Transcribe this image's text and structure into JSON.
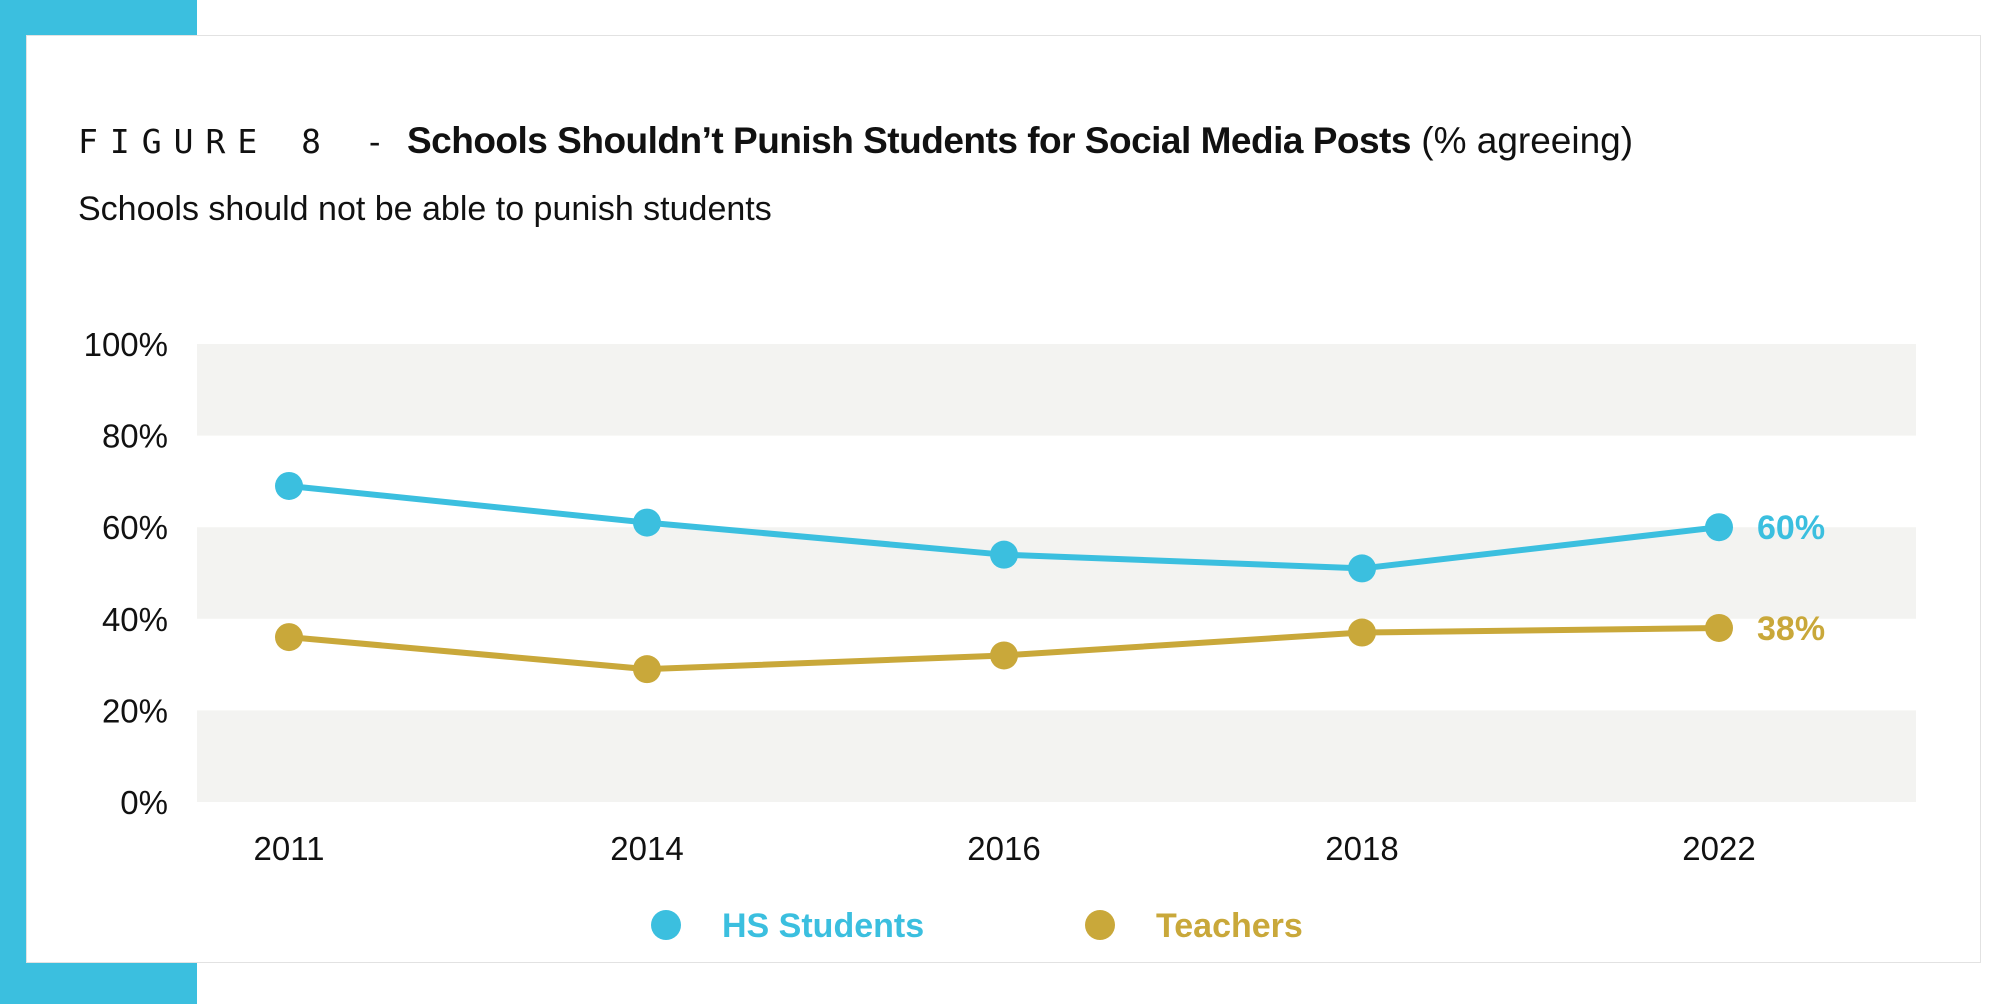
{
  "header": {
    "figure_prefix": "FIGURE 8 -",
    "title": "Schools Shouldn’t Punish Students for Social Media Posts",
    "title_suffix": "(% agreeing)",
    "subtitle": "Schools should not be able to punish students"
  },
  "colors": {
    "accent": "#3bbfdf",
    "hs_students": "#3bbfdf",
    "teachers": "#c9a83a",
    "band": "#f3f3f1"
  },
  "chart_data": {
    "type": "line",
    "categories": [
      "2011",
      "2014",
      "2016",
      "2018",
      "2022"
    ],
    "ylim": [
      0,
      100
    ],
    "y_ticks": [
      0,
      20,
      40,
      60,
      80,
      100
    ],
    "y_tick_labels": [
      "0%",
      "20%",
      "40%",
      "60%",
      "80%",
      "100%"
    ],
    "grid": "alternating horizontal bands",
    "legend_position": "bottom-center",
    "series": [
      {
        "name": "HS Students",
        "color": "#3bbfdf",
        "values": [
          69,
          61,
          54,
          51,
          60
        ],
        "end_label": "60%"
      },
      {
        "name": "Teachers",
        "color": "#c9a83a",
        "values": [
          36,
          29,
          32,
          37,
          38
        ],
        "end_label": "38%"
      }
    ]
  }
}
